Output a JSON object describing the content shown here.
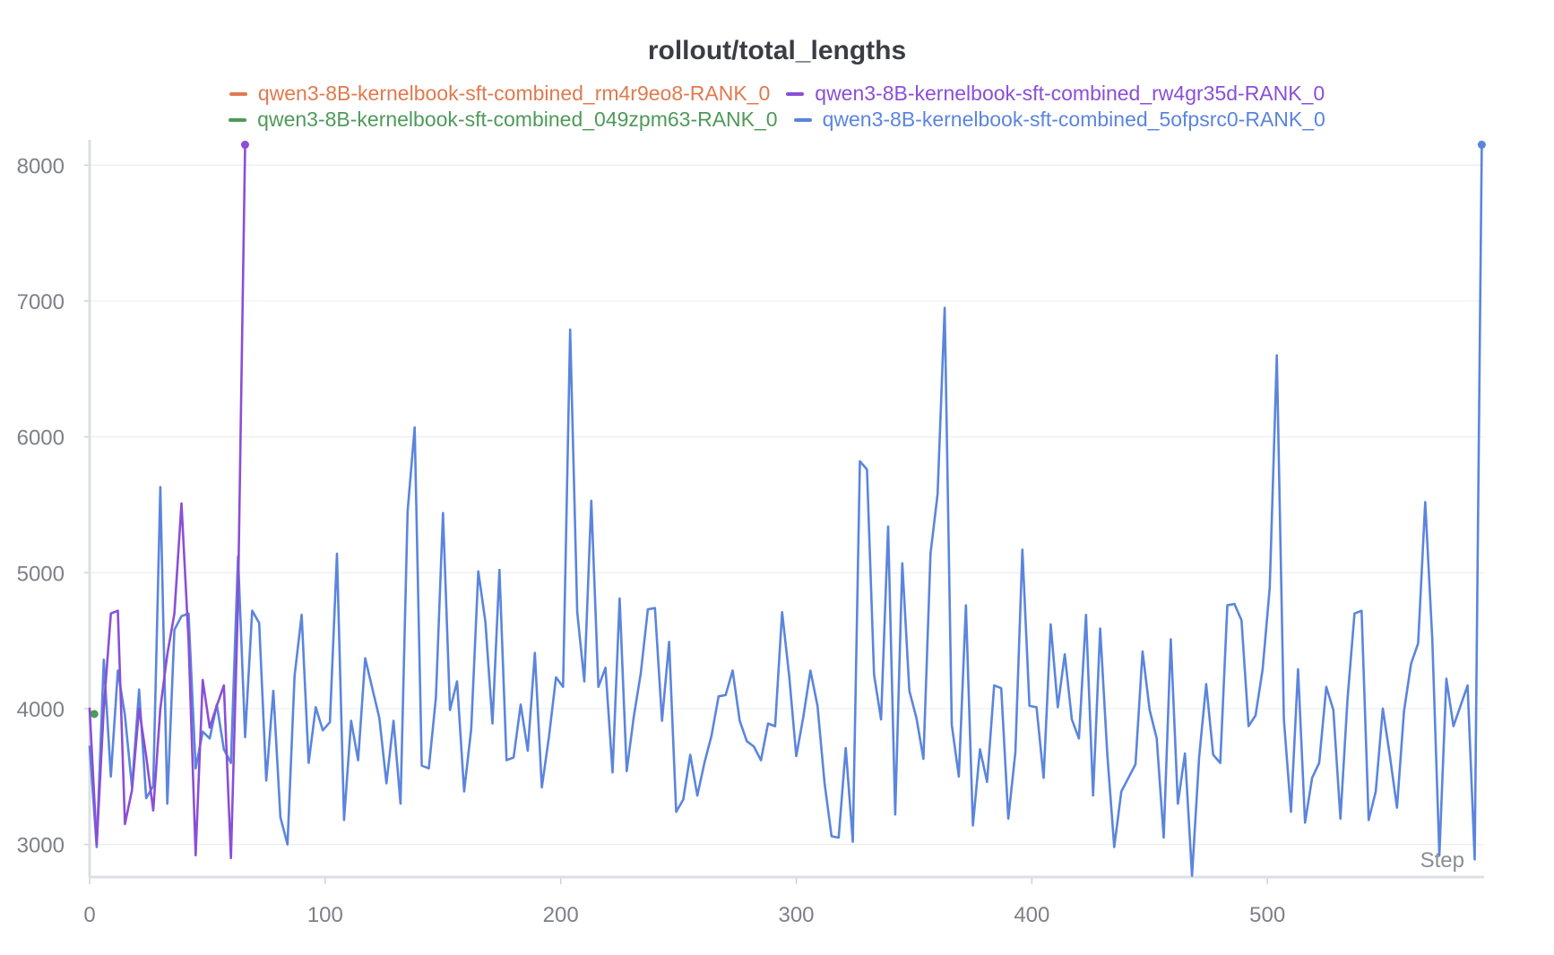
{
  "chart_data": {
    "type": "line",
    "title": "rollout/total_lengths",
    "xlabel": "Step",
    "ylabel": "",
    "xlim": [
      0,
      592
    ],
    "ylim": [
      2760,
      8160
    ],
    "x_ticks": [
      0,
      100,
      200,
      300,
      400,
      500
    ],
    "y_ticks": [
      3000,
      4000,
      5000,
      6000,
      7000,
      8000
    ],
    "grid": true,
    "legend_position": "top",
    "series": [
      {
        "name": "qwen3-8B-kernelbook-sft-combined_rm4r9eo8-RANK_0",
        "color": "#e07a4f",
        "points": []
      },
      {
        "name": "qwen3-8B-kernelbook-sft-combined_rw4gr35d-RANK_0",
        "color": "#8a4fd6",
        "points": [
          [
            0,
            4000
          ],
          [
            3,
            3000
          ],
          [
            6,
            4000
          ],
          [
            9,
            4700
          ],
          [
            12,
            4720
          ],
          [
            15,
            3150
          ],
          [
            18,
            3400
          ],
          [
            21,
            4000
          ],
          [
            24,
            3650
          ],
          [
            27,
            3250
          ],
          [
            30,
            4000
          ],
          [
            33,
            4400
          ],
          [
            36,
            4700
          ],
          [
            39,
            5510
          ],
          [
            42,
            4500
          ],
          [
            45,
            2920
          ],
          [
            48,
            4210
          ],
          [
            51,
            3860
          ],
          [
            54,
            4020
          ],
          [
            57,
            4170
          ],
          [
            60,
            2900
          ],
          [
            63,
            4800
          ],
          [
            66,
            8150
          ]
        ]
      },
      {
        "name": "qwen3-8B-kernelbook-sft-combined_049zpm63-RANK_0",
        "color": "#4e9a5a",
        "points": [
          [
            0,
            3980
          ],
          [
            2,
            3960
          ]
        ]
      },
      {
        "name": "qwen3-8B-kernelbook-sft-combined_5ofpsrc0-RANK_0",
        "color": "#5b85dd",
        "points": [
          [
            0,
            3720
          ],
          [
            3,
            2980
          ],
          [
            6,
            4360
          ],
          [
            9,
            3500
          ],
          [
            12,
            4280
          ],
          [
            15,
            3950
          ],
          [
            18,
            3420
          ],
          [
            21,
            4140
          ],
          [
            24,
            3340
          ],
          [
            27,
            3430
          ],
          [
            30,
            5630
          ],
          [
            33,
            3300
          ],
          [
            36,
            4580
          ],
          [
            39,
            4680
          ],
          [
            42,
            4700
          ],
          [
            45,
            3560
          ],
          [
            48,
            3830
          ],
          [
            51,
            3780
          ],
          [
            54,
            4030
          ],
          [
            57,
            3700
          ],
          [
            60,
            3600
          ],
          [
            63,
            5120
          ],
          [
            66,
            3790
          ],
          [
            69,
            4720
          ],
          [
            72,
            4630
          ],
          [
            75,
            3470
          ],
          [
            78,
            4130
          ],
          [
            81,
            3200
          ],
          [
            84,
            3000
          ],
          [
            87,
            4240
          ],
          [
            90,
            4690
          ],
          [
            93,
            3600
          ],
          [
            96,
            4010
          ],
          [
            99,
            3840
          ],
          [
            102,
            3900
          ],
          [
            105,
            5140
          ],
          [
            108,
            3180
          ],
          [
            111,
            3910
          ],
          [
            114,
            3620
          ],
          [
            117,
            4370
          ],
          [
            120,
            4150
          ],
          [
            123,
            3930
          ],
          [
            126,
            3450
          ],
          [
            129,
            3910
          ],
          [
            132,
            3300
          ],
          [
            135,
            5450
          ],
          [
            138,
            6070
          ],
          [
            141,
            3580
          ],
          [
            144,
            3560
          ],
          [
            147,
            4080
          ],
          [
            150,
            5440
          ],
          [
            153,
            3990
          ],
          [
            156,
            4200
          ],
          [
            159,
            3390
          ],
          [
            162,
            3850
          ],
          [
            165,
            5010
          ],
          [
            168,
            4640
          ],
          [
            171,
            3890
          ],
          [
            174,
            5020
          ],
          [
            177,
            3620
          ],
          [
            180,
            3640
          ],
          [
            183,
            4030
          ],
          [
            186,
            3690
          ],
          [
            189,
            4410
          ],
          [
            192,
            3420
          ],
          [
            195,
            3790
          ],
          [
            198,
            4230
          ],
          [
            201,
            4160
          ],
          [
            204,
            6790
          ],
          [
            207,
            4710
          ],
          [
            210,
            4200
          ],
          [
            213,
            5530
          ],
          [
            216,
            4160
          ],
          [
            219,
            4300
          ],
          [
            222,
            3530
          ],
          [
            225,
            4810
          ],
          [
            228,
            3540
          ],
          [
            231,
            3940
          ],
          [
            234,
            4260
          ],
          [
            237,
            4730
          ],
          [
            240,
            4740
          ],
          [
            243,
            3910
          ],
          [
            246,
            4490
          ],
          [
            249,
            3240
          ],
          [
            252,
            3330
          ],
          [
            255,
            3660
          ],
          [
            258,
            3360
          ],
          [
            261,
            3600
          ],
          [
            264,
            3800
          ],
          [
            267,
            4090
          ],
          [
            270,
            4100
          ],
          [
            273,
            4280
          ],
          [
            276,
            3910
          ],
          [
            279,
            3760
          ],
          [
            282,
            3720
          ],
          [
            285,
            3620
          ],
          [
            288,
            3890
          ],
          [
            291,
            3870
          ],
          [
            294,
            4710
          ],
          [
            297,
            4240
          ],
          [
            300,
            3650
          ],
          [
            303,
            3940
          ],
          [
            306,
            4280
          ],
          [
            309,
            4020
          ],
          [
            312,
            3450
          ],
          [
            315,
            3060
          ],
          [
            318,
            3050
          ],
          [
            321,
            3710
          ],
          [
            324,
            3020
          ],
          [
            327,
            5820
          ],
          [
            330,
            5760
          ],
          [
            333,
            4250
          ],
          [
            336,
            3920
          ],
          [
            339,
            5340
          ],
          [
            342,
            3220
          ],
          [
            345,
            5070
          ],
          [
            348,
            4130
          ],
          [
            351,
            3930
          ],
          [
            354,
            3630
          ],
          [
            357,
            5140
          ],
          [
            360,
            5580
          ],
          [
            363,
            6950
          ],
          [
            366,
            3880
          ],
          [
            369,
            3500
          ],
          [
            372,
            4760
          ],
          [
            375,
            3140
          ],
          [
            378,
            3700
          ],
          [
            381,
            3460
          ],
          [
            384,
            4170
          ],
          [
            387,
            4150
          ],
          [
            390,
            3190
          ],
          [
            393,
            3680
          ],
          [
            396,
            5170
          ],
          [
            399,
            4020
          ],
          [
            402,
            4010
          ],
          [
            405,
            3490
          ],
          [
            408,
            4620
          ],
          [
            411,
            4010
          ],
          [
            414,
            4400
          ],
          [
            417,
            3920
          ],
          [
            420,
            3780
          ],
          [
            423,
            4690
          ],
          [
            426,
            3360
          ],
          [
            429,
            4590
          ],
          [
            432,
            3670
          ],
          [
            435,
            2980
          ],
          [
            438,
            3390
          ],
          [
            441,
            3490
          ],
          [
            444,
            3590
          ],
          [
            447,
            4420
          ],
          [
            450,
            3990
          ],
          [
            453,
            3780
          ],
          [
            456,
            3050
          ],
          [
            459,
            4510
          ],
          [
            462,
            3300
          ],
          [
            465,
            3670
          ],
          [
            468,
            2770
          ],
          [
            471,
            3640
          ],
          [
            474,
            4180
          ],
          [
            477,
            3660
          ],
          [
            480,
            3600
          ],
          [
            483,
            4760
          ],
          [
            486,
            4770
          ],
          [
            489,
            4650
          ],
          [
            492,
            3870
          ],
          [
            495,
            3950
          ],
          [
            498,
            4290
          ],
          [
            501,
            4890
          ],
          [
            504,
            6600
          ],
          [
            507,
            3920
          ],
          [
            510,
            3240
          ],
          [
            513,
            4290
          ],
          [
            516,
            3160
          ],
          [
            519,
            3490
          ],
          [
            522,
            3600
          ],
          [
            525,
            4160
          ],
          [
            528,
            3990
          ],
          [
            531,
            3190
          ],
          [
            534,
            4070
          ],
          [
            537,
            4700
          ],
          [
            540,
            4720
          ],
          [
            543,
            3180
          ],
          [
            546,
            3390
          ],
          [
            549,
            4000
          ],
          [
            552,
            3650
          ],
          [
            555,
            3270
          ],
          [
            558,
            3980
          ],
          [
            561,
            4330
          ],
          [
            564,
            4480
          ],
          [
            567,
            5520
          ],
          [
            570,
            4510
          ],
          [
            573,
            2920
          ],
          [
            576,
            4220
          ],
          [
            579,
            3870
          ],
          [
            582,
            4020
          ],
          [
            585,
            4170
          ],
          [
            588,
            2890
          ],
          [
            591,
            8150
          ]
        ]
      }
    ]
  }
}
